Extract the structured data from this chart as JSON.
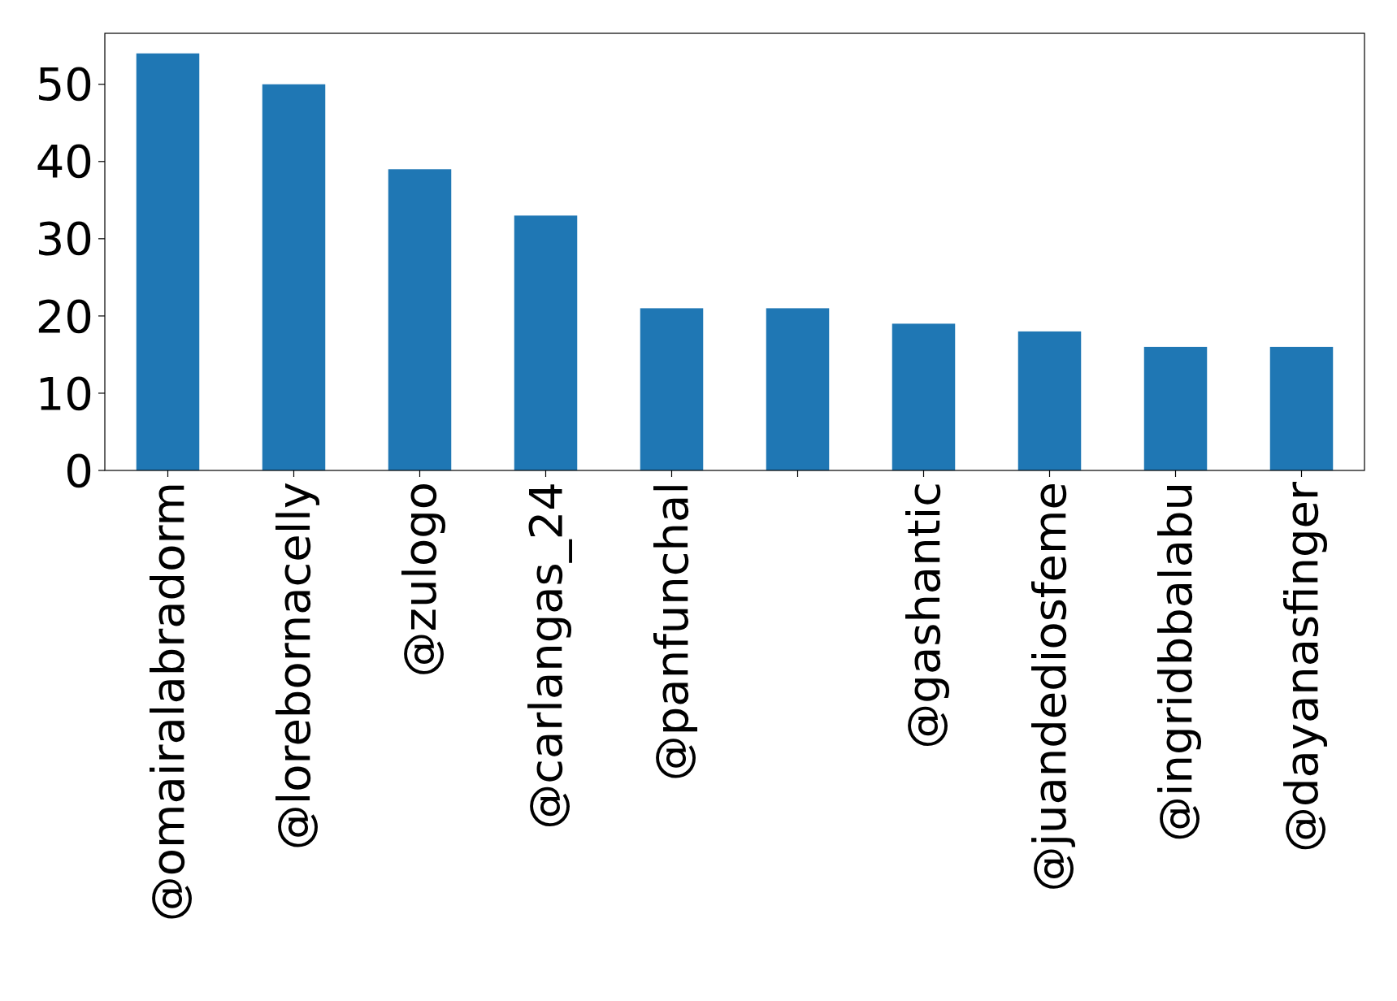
{
  "chart_data": {
    "type": "bar",
    "categories": [
      "@omairalabradorm",
      "@lorebornacelly",
      "@zulogo",
      "@carlangas_24",
      "@panfunchal",
      null,
      "@gashantic",
      "@juandediosfeme",
      "@ingridbbalabu",
      "@dayanasfinger"
    ],
    "values": [
      54,
      50,
      39,
      33,
      21,
      21,
      19,
      18,
      16,
      16
    ],
    "color": "#1f77b4",
    "ylim": [
      0,
      56.6
    ],
    "yticks": [
      0,
      10,
      20,
      30,
      40,
      50
    ],
    "grid": false
  }
}
